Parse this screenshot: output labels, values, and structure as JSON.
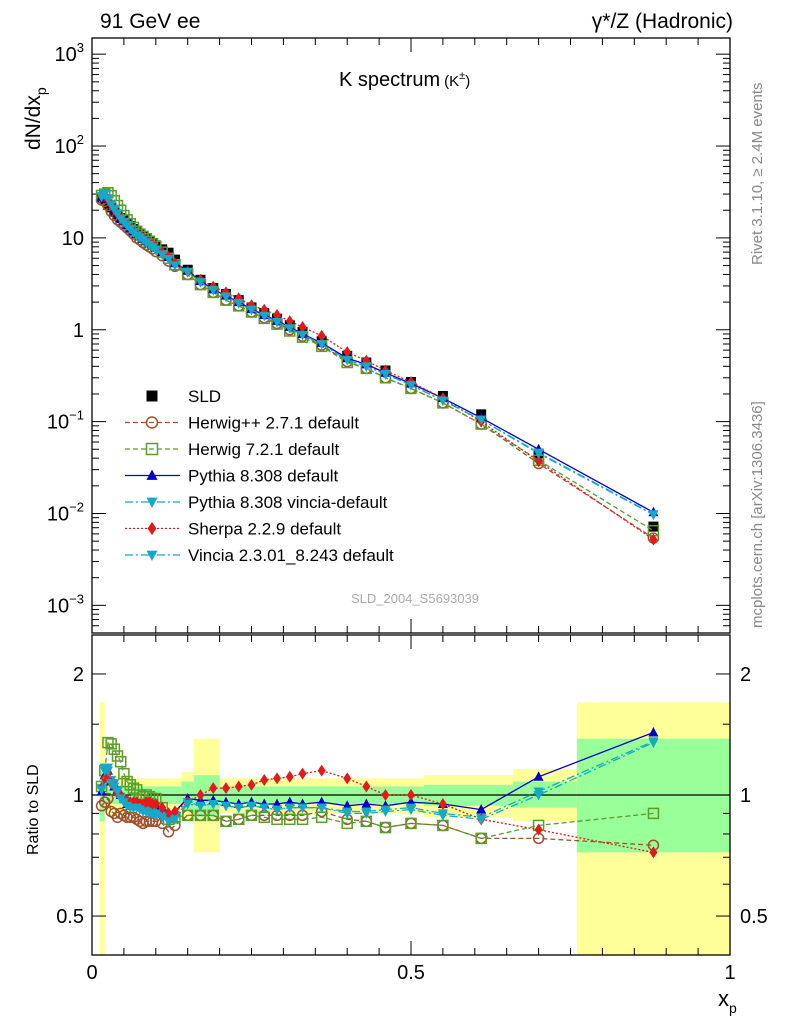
{
  "header": {
    "left": "91 GeV ee",
    "right": "γ*/Z (Hadronic)"
  },
  "side_labels": {
    "rivet": "Rivet 3.1.10, ≥ 2.4M events",
    "mcplots": "mcplots.cern.ch [arXiv:1306.3436]"
  },
  "watermark": "SLD_2004_S5693039",
  "colors": {
    "sld": "#000000",
    "herwigpp": "#a0522d",
    "herwig7": "#5a9e2a",
    "pythia": "#0000cc",
    "vincia_default": "#17a8c8",
    "sherpa": "#e31a1c",
    "band_inner": "#99ff99",
    "band_outer": "#ffff99"
  },
  "chart_data": [
    {
      "type": "line",
      "title": "K spectrum",
      "title_sup": "(K",
      "title_sup_pm": "±",
      "title_sup_close": ")",
      "ylabel_main": "dN/dx",
      "ylabel_sub": "p",
      "yscale": "log",
      "ylim": [
        0.0005,
        1500
      ],
      "xlim": [
        0,
        1
      ],
      "yticks": [
        {
          "value": 0.001,
          "base": "10",
          "exp": "−3"
        },
        {
          "value": 0.01,
          "base": "10",
          "exp": "−2"
        },
        {
          "value": 0.1,
          "base": "10",
          "exp": "−1"
        },
        {
          "value": 1,
          "base": "1",
          "exp": ""
        },
        {
          "value": 10,
          "base": "10",
          "exp": ""
        },
        {
          "value": 100,
          "base": "10",
          "exp": "2"
        },
        {
          "value": 1000,
          "base": "10",
          "exp": "3"
        }
      ],
      "x": [
        0.015,
        0.02,
        0.025,
        0.03,
        0.035,
        0.04,
        0.045,
        0.05,
        0.055,
        0.06,
        0.065,
        0.07,
        0.075,
        0.08,
        0.085,
        0.09,
        0.095,
        0.1,
        0.11,
        0.12,
        0.13,
        0.15,
        0.17,
        0.19,
        0.21,
        0.23,
        0.25,
        0.27,
        0.29,
        0.31,
        0.33,
        0.36,
        0.4,
        0.43,
        0.46,
        0.5,
        0.55,
        0.61,
        0.7,
        0.88
      ],
      "series": [
        {
          "name": "SLD",
          "key": "sld",
          "style": "square_filled",
          "dash": "none",
          "values": [
            27.5,
            26,
            23,
            21.5,
            19.5,
            18,
            16.5,
            15.5,
            14.5,
            13.5,
            12.5,
            11.5,
            11,
            10.5,
            9.8,
            9.3,
            8.8,
            8.3,
            7.5,
            6.9,
            5.8,
            4.5,
            3.5,
            2.85,
            2.45,
            2.1,
            1.75,
            1.52,
            1.32,
            1.12,
            0.95,
            0.75,
            0.52,
            0.44,
            0.36,
            0.27,
            0.19,
            0.12,
            0.045,
            0.0072
          ]
        },
        {
          "name": "Herwig++ 2.7.1 default",
          "key": "herwigpp",
          "style": "circle_open",
          "dash": "5,3",
          "values": [
            25.8,
            25,
            22.5,
            19.5,
            17.5,
            15.8,
            14.8,
            13.8,
            12.8,
            11.9,
            11,
            10,
            9.5,
            8.9,
            8.4,
            8.0,
            7.6,
            7.1,
            6.4,
            5.6,
            4.9,
            4.0,
            3.1,
            2.55,
            2.1,
            1.82,
            1.56,
            1.35,
            1.17,
            1.0,
            0.85,
            0.68,
            0.45,
            0.38,
            0.3,
            0.23,
            0.16,
            0.094,
            0.035,
            0.0054
          ]
        },
        {
          "name": "Herwig 7.2.1 default",
          "key": "herwig7",
          "style": "square_open",
          "dash": "5,3",
          "values": [
            29,
            30,
            31,
            28.8,
            25.4,
            22.5,
            20,
            17.5,
            15.7,
            14.3,
            13,
            11.8,
            11,
            10.4,
            9.8,
            9.2,
            8.6,
            8.1,
            7.0,
            6.0,
            5.1,
            4.0,
            3.1,
            2.55,
            2.1,
            1.82,
            1.56,
            1.33,
            1.15,
            0.97,
            0.83,
            0.66,
            0.44,
            0.38,
            0.3,
            0.23,
            0.16,
            0.094,
            0.038,
            0.0065
          ]
        },
        {
          "name": "Pythia 8.308 default",
          "key": "pythia",
          "style": "triangle_up",
          "dash": "none",
          "values": [
            28,
            29,
            26.5,
            23.3,
            20.4,
            18.6,
            16.5,
            15.2,
            13.8,
            12.7,
            11.8,
            11,
            10.4,
            9.8,
            9.2,
            8.7,
            8.3,
            7.8,
            7.0,
            6.2,
            5.3,
            4.4,
            3.4,
            2.75,
            2.35,
            2.0,
            1.68,
            1.45,
            1.25,
            1.07,
            0.9,
            0.72,
            0.49,
            0.42,
            0.34,
            0.26,
            0.18,
            0.11,
            0.05,
            0.0103
          ]
        },
        {
          "name": "Pythia 8.308 vincia-default",
          "key": "vincia_default",
          "style": "triangle_down",
          "dash": "8,3,2,3",
          "values": [
            28.5,
            30.5,
            27,
            23.5,
            20.8,
            18.5,
            16.3,
            15,
            13.8,
            12.7,
            11.7,
            10.8,
            10.2,
            9.6,
            9.0,
            8.5,
            8.0,
            7.5,
            6.7,
            6.0,
            5.1,
            4.3,
            3.3,
            2.7,
            2.3,
            1.95,
            1.65,
            1.42,
            1.22,
            1.04,
            0.88,
            0.7,
            0.47,
            0.4,
            0.33,
            0.25,
            0.17,
            0.105,
            0.046,
            0.0098
          ]
        },
        {
          "name": "Sherpa 2.2.9 default",
          "key": "sherpa",
          "style": "diamond",
          "dash": "2,2",
          "values": [
            28.5,
            29,
            26,
            23,
            20.5,
            18.2,
            16.5,
            15,
            14,
            13,
            12,
            11,
            10.5,
            10,
            9.4,
            8.9,
            8.4,
            7.9,
            7.0,
            6.2,
            5.3,
            4.3,
            3.5,
            2.95,
            2.55,
            2.2,
            1.85,
            1.65,
            1.45,
            1.24,
            1.07,
            0.86,
            0.57,
            0.46,
            0.36,
            0.27,
            0.18,
            0.1,
            0.037,
            0.0052
          ]
        },
        {
          "name": "Vincia 2.3.01_8.243 default",
          "key": "vincia_default",
          "style": "triangle_down",
          "dash": "8,3,2,3",
          "values": [
            28.2,
            30,
            26.5,
            23,
            20.5,
            18.3,
            16.1,
            14.8,
            13.6,
            12.5,
            11.5,
            10.6,
            10.1,
            9.5,
            8.9,
            8.4,
            7.9,
            7.4,
            6.6,
            5.9,
            5.0,
            4.25,
            3.3,
            2.7,
            2.3,
            1.95,
            1.65,
            1.42,
            1.22,
            1.04,
            0.88,
            0.7,
            0.47,
            0.4,
            0.33,
            0.25,
            0.17,
            0.105,
            0.045,
            0.0097
          ]
        }
      ]
    },
    {
      "type": "line",
      "ylabel": "Ratio to SLD",
      "yscale": "log",
      "ylim": [
        0.4,
        2.5
      ],
      "xlim": [
        0,
        1
      ],
      "xlabel_main": "x",
      "xlabel_sub": "p",
      "yticks": [
        {
          "value": 0.5,
          "label": "0.5"
        },
        {
          "value": 1,
          "label": "1"
        },
        {
          "value": 2,
          "label": "2"
        }
      ],
      "xticks": [
        {
          "value": 0,
          "label": "0"
        },
        {
          "value": 0.5,
          "label": "0.5"
        },
        {
          "value": 1,
          "label": "1"
        }
      ],
      "bands": [
        {
          "x0": 0.012,
          "x1": 0.02,
          "outer": [
            0.4,
            1.7
          ],
          "inner": [
            0.86,
            1.15
          ]
        },
        {
          "x0": 0.02,
          "x1": 0.06,
          "outer": [
            0.9,
            1.12
          ],
          "inner": [
            0.95,
            1.05
          ]
        },
        {
          "x0": 0.06,
          "x1": 0.14,
          "outer": [
            0.9,
            1.1
          ],
          "inner": [
            0.95,
            1.05
          ]
        },
        {
          "x0": 0.14,
          "x1": 0.16,
          "outer": [
            0.86,
            1.14
          ],
          "inner": [
            0.92,
            1.08
          ]
        },
        {
          "x0": 0.16,
          "x1": 0.2,
          "outer": [
            0.72,
            1.38
          ],
          "inner": [
            0.88,
            1.12
          ]
        },
        {
          "x0": 0.2,
          "x1": 0.52,
          "outer": [
            0.9,
            1.1
          ],
          "inner": [
            0.95,
            1.05
          ]
        },
        {
          "x0": 0.52,
          "x1": 0.66,
          "outer": [
            0.88,
            1.12
          ],
          "inner": [
            0.94,
            1.06
          ]
        },
        {
          "x0": 0.66,
          "x1": 0.76,
          "outer": [
            0.86,
            1.16
          ],
          "inner": [
            0.93,
            1.08
          ]
        },
        {
          "x0": 0.76,
          "x1": 1.0,
          "outer": [
            0.4,
            1.7
          ],
          "inner": [
            0.72,
            1.38
          ]
        }
      ],
      "x": [
        0.015,
        0.02,
        0.025,
        0.03,
        0.035,
        0.04,
        0.045,
        0.05,
        0.055,
        0.06,
        0.065,
        0.07,
        0.075,
        0.08,
        0.085,
        0.09,
        0.095,
        0.1,
        0.11,
        0.12,
        0.13,
        0.15,
        0.17,
        0.19,
        0.21,
        0.23,
        0.25,
        0.27,
        0.29,
        0.31,
        0.33,
        0.36,
        0.4,
        0.43,
        0.46,
        0.5,
        0.55,
        0.61,
        0.7,
        0.88
      ],
      "series": [
        {
          "name": "Herwig++ 2.7.1 default",
          "key": "herwigpp",
          "style": "circle_open",
          "dash": "5,3",
          "values": [
            0.94,
            0.96,
            0.98,
            0.91,
            0.9,
            0.88,
            0.9,
            0.89,
            0.88,
            0.88,
            0.88,
            0.87,
            0.86,
            0.85,
            0.86,
            0.86,
            0.86,
            0.86,
            0.85,
            0.81,
            0.84,
            0.89,
            0.89,
            0.89,
            0.86,
            0.87,
            0.89,
            0.89,
            0.89,
            0.89,
            0.89,
            0.91,
            0.87,
            0.86,
            0.83,
            0.85,
            0.84,
            0.78,
            0.78,
            0.75
          ]
        },
        {
          "name": "Herwig 7.2.1 default",
          "key": "herwig7",
          "style": "square_open",
          "dash": "5,3",
          "values": [
            1.05,
            1.15,
            1.35,
            1.34,
            1.3,
            1.25,
            1.21,
            1.13,
            1.08,
            1.06,
            1.04,
            1.03,
            1.0,
            0.99,
            1.0,
            0.99,
            0.98,
            0.98,
            0.93,
            0.87,
            0.88,
            0.89,
            0.89,
            0.89,
            0.86,
            0.87,
            0.89,
            0.88,
            0.87,
            0.87,
            0.87,
            0.88,
            0.85,
            0.86,
            0.83,
            0.85,
            0.84,
            0.78,
            0.84,
            0.9
          ]
        },
        {
          "name": "Pythia 8.308 default",
          "key": "pythia",
          "style": "triangle_up",
          "dash": "none",
          "values": [
            1.02,
            1.12,
            1.15,
            1.08,
            1.05,
            1.03,
            1.0,
            0.98,
            0.95,
            0.94,
            0.94,
            0.96,
            0.95,
            0.93,
            0.94,
            0.94,
            0.94,
            0.94,
            0.93,
            0.9,
            0.91,
            0.98,
            0.97,
            0.97,
            0.96,
            0.95,
            0.96,
            0.95,
            0.95,
            0.96,
            0.95,
            0.96,
            0.94,
            0.95,
            0.94,
            0.96,
            0.95,
            0.92,
            1.11,
            1.43
          ]
        },
        {
          "name": "Pythia 8.308 vincia-default",
          "key": "vincia_default",
          "style": "triangle_down",
          "dash": "8,3,2,3",
          "values": [
            1.04,
            1.17,
            1.17,
            1.09,
            1.07,
            1.03,
            0.99,
            0.97,
            0.95,
            0.94,
            0.94,
            0.94,
            0.93,
            0.92,
            0.92,
            0.91,
            0.91,
            0.9,
            0.89,
            0.87,
            0.88,
            0.96,
            0.94,
            0.95,
            0.94,
            0.93,
            0.94,
            0.93,
            0.92,
            0.93,
            0.93,
            0.93,
            0.91,
            0.91,
            0.92,
            0.93,
            0.9,
            0.88,
            1.02,
            1.36
          ]
        },
        {
          "name": "Sherpa 2.2.9 default",
          "key": "sherpa",
          "style": "diamond",
          "dash": "2,2",
          "values": [
            1.04,
            1.1,
            1.13,
            1.07,
            1.05,
            1.01,
            1.0,
            0.97,
            0.97,
            0.96,
            0.96,
            0.96,
            0.95,
            0.95,
            0.96,
            0.96,
            0.95,
            0.95,
            0.93,
            0.9,
            0.91,
            0.96,
            1.0,
            1.04,
            1.04,
            1.05,
            1.06,
            1.09,
            1.1,
            1.11,
            1.13,
            1.15,
            1.1,
            1.05,
            1.0,
            1.0,
            0.95,
            0.87,
            0.82,
            0.72
          ]
        },
        {
          "name": "Vincia 2.3.01_8.243 default",
          "key": "vincia_default",
          "style": "triangle_down",
          "dash": "8,3,2,3",
          "values": [
            1.03,
            1.15,
            1.15,
            1.07,
            1.05,
            1.02,
            0.98,
            0.96,
            0.94,
            0.93,
            0.93,
            0.93,
            0.92,
            0.91,
            0.91,
            0.9,
            0.9,
            0.89,
            0.88,
            0.86,
            0.87,
            0.95,
            0.94,
            0.95,
            0.94,
            0.93,
            0.94,
            0.93,
            0.92,
            0.93,
            0.93,
            0.93,
            0.9,
            0.9,
            0.91,
            0.92,
            0.89,
            0.87,
            1.0,
            1.35
          ]
        }
      ]
    }
  ]
}
